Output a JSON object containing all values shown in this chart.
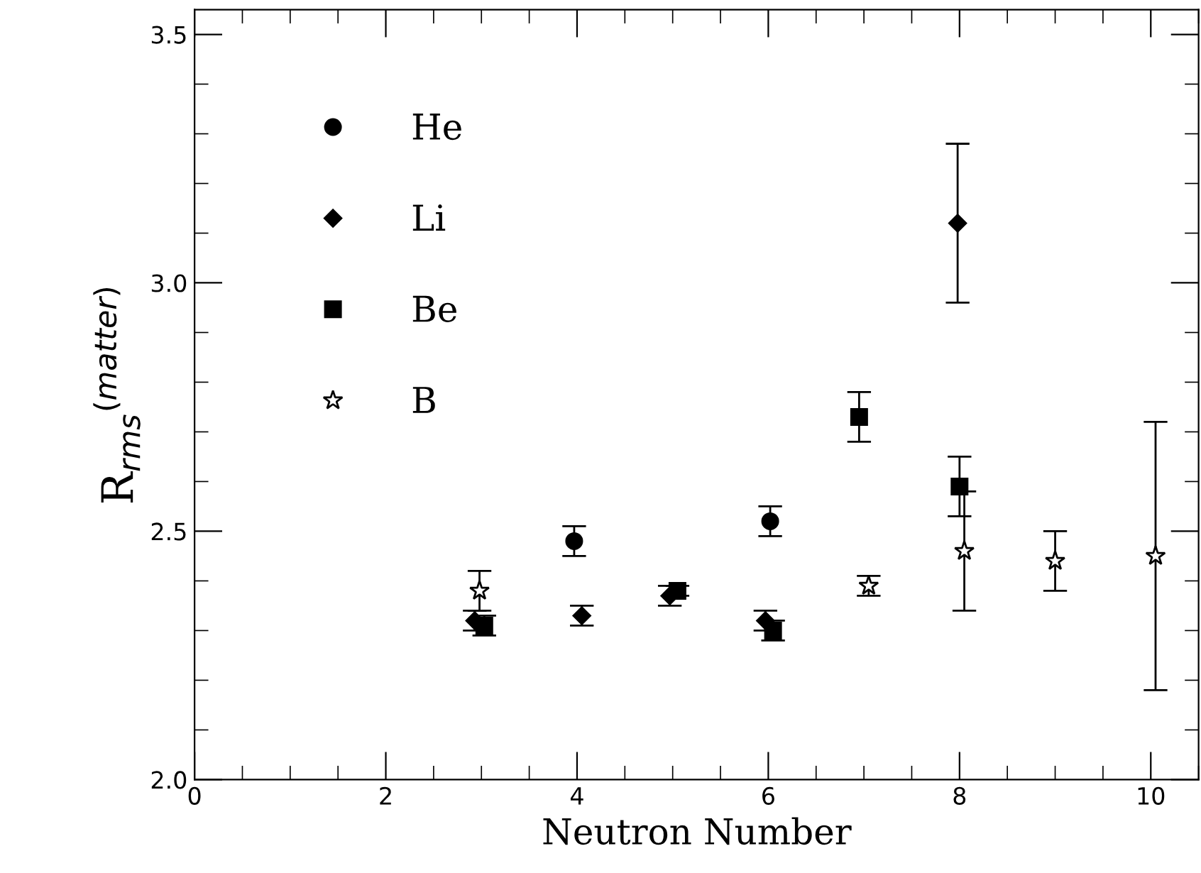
{
  "chart_data": {
    "type": "scatter",
    "xlabel": "Neutron Number",
    "ylabel": "R$_{rms}$$^{(matter)}$",
    "xlim": [
      0,
      10.5
    ],
    "ylim": [
      2.0,
      3.55
    ],
    "xticks": [
      0,
      2,
      4,
      6,
      8,
      10
    ],
    "yticks": [
      {
        "value": 2,
        "label": "2.0"
      },
      2.5,
      {
        "value": 3,
        "label": "3.0"
      },
      3.5
    ],
    "legend": "top left",
    "grid": false,
    "series": [
      {
        "name": "He",
        "color": "#000000",
        "marker": "circle",
        "x": [
          3.97,
          6.02
        ],
        "values": [
          2.48,
          2.52
        ],
        "errors": [
          0.03,
          0.03
        ]
      },
      {
        "name": "Li",
        "color": "#000000",
        "marker": "diamond",
        "x": [
          2.93,
          4.05,
          4.97,
          5.97,
          7.98
        ],
        "values": [
          2.32,
          2.33,
          2.37,
          2.32,
          3.12
        ],
        "errors": [
          0.02,
          0.02,
          0.02,
          0.02,
          0.16
        ]
      },
      {
        "name": "Be",
        "color": "#000000",
        "marker": "square",
        "x": [
          3.03,
          5.05,
          6.05,
          6.95,
          8.0
        ],
        "values": [
          2.31,
          2.38,
          2.3,
          2.73,
          2.59
        ],
        "errors": [
          0.02,
          0.01,
          0.02,
          0.05,
          0.06
        ]
      },
      {
        "name": "B",
        "color": "#000000",
        "marker": "star",
        "x": [
          2.98,
          7.05,
          8.05,
          9.0,
          10.05
        ],
        "values": [
          2.38,
          2.39,
          2.46,
          2.44,
          2.45
        ],
        "errors": [
          0.04,
          0.02,
          0.12,
          0.06,
          0.27
        ]
      }
    ]
  }
}
